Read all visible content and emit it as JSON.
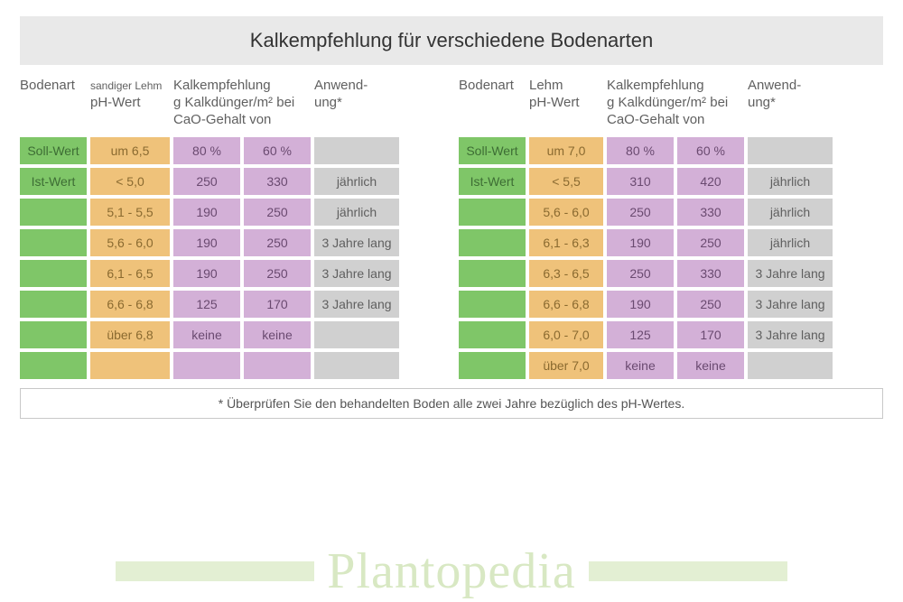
{
  "title": "Kalkempfehlung für verschiedene Bodenarten",
  "footnote": "* Überprüfen Sie den behandelten Boden alle zwei Jahre bezüglich des pH-Wertes.",
  "brand": "Plantopedia",
  "colors": {
    "green": "#7fc668",
    "orange": "#efc27a",
    "purple": "#d3b0d7",
    "gray": "#d0d0d0",
    "title_bg": "#e9e9e9",
    "brand_text": "#d8e8c3",
    "brand_bar": "#e3efd3"
  },
  "left": {
    "headers": {
      "c1": "Bodenart",
      "c2_top": "sandiger Lehm",
      "c2_bot": "pH-Wert",
      "c3_top": "Kalkempfehlung",
      "c3_mid": "g Kalkdünger/m² bei",
      "c3_bot": "CaO-Gehalt von",
      "c5": "Anwend-\nung*"
    },
    "rows": [
      {
        "label": "Soll-Wert",
        "ph": "um 6,5",
        "v80": "80 %",
        "v60": "60 %",
        "app": ""
      },
      {
        "label": "Ist-Wert",
        "ph": "< 5,0",
        "v80": "250",
        "v60": "330",
        "app": "jährlich"
      },
      {
        "label": "",
        "ph": "5,1 - 5,5",
        "v80": "190",
        "v60": "250",
        "app": "jährlich"
      },
      {
        "label": "",
        "ph": "5,6 - 6,0",
        "v80": "190",
        "v60": "250",
        "app": "3 Jahre lang"
      },
      {
        "label": "",
        "ph": "6,1 - 6,5",
        "v80": "190",
        "v60": "250",
        "app": "3 Jahre lang"
      },
      {
        "label": "",
        "ph": "6,6 - 6,8",
        "v80": "125",
        "v60": "170",
        "app": "3 Jahre lang"
      },
      {
        "label": "",
        "ph": "über 6,8",
        "v80": "keine",
        "v60": "keine",
        "app": ""
      },
      {
        "label": "",
        "ph": "",
        "v80": "",
        "v60": "",
        "app": ""
      }
    ]
  },
  "right": {
    "headers": {
      "c1": "Bodenart",
      "c2_top": "Lehm",
      "c2_bot": "pH-Wert",
      "c3_top": "Kalkempfehlung",
      "c3_mid": "g Kalkdünger/m² bei",
      "c3_bot": "CaO-Gehalt von",
      "c5": "Anwend-\nung*"
    },
    "rows": [
      {
        "label": "Soll-Wert",
        "ph": "um 7,0",
        "v80": "80 %",
        "v60": "60 %",
        "app": ""
      },
      {
        "label": "Ist-Wert",
        "ph": "< 5,5",
        "v80": "310",
        "v60": "420",
        "app": "jährlich"
      },
      {
        "label": "",
        "ph": "5,6 - 6,0",
        "v80": "250",
        "v60": "330",
        "app": "jährlich"
      },
      {
        "label": "",
        "ph": "6,1 - 6,3",
        "v80": "190",
        "v60": "250",
        "app": "jährlich"
      },
      {
        "label": "",
        "ph": "6,3 - 6,5",
        "v80": "250",
        "v60": "330",
        "app": "3 Jahre lang"
      },
      {
        "label": "",
        "ph": "6,6 - 6,8",
        "v80": "190",
        "v60": "250",
        "app": "3 Jahre lang"
      },
      {
        "label": "",
        "ph": "6,0 - 7,0",
        "v80": "125",
        "v60": "170",
        "app": "3 Jahre lang"
      },
      {
        "label": "",
        "ph": "über 7,0",
        "v80": "keine",
        "v60": "keine",
        "app": ""
      }
    ]
  }
}
